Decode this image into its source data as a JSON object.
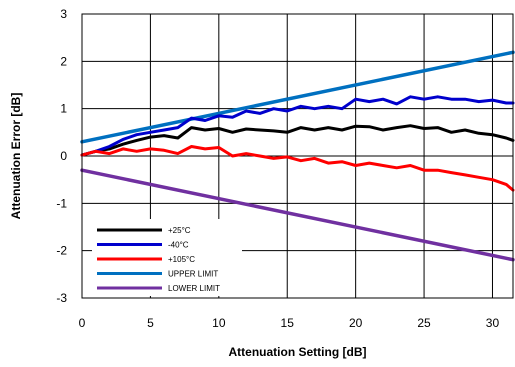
{
  "chart_data": {
    "type": "line",
    "title": "",
    "xlabel": "Attenuation Setting [dB]",
    "ylabel": "Attenuation Error [dB]",
    "xlim": [
      0,
      31.5
    ],
    "ylim": [
      -3,
      3
    ],
    "xticks": [
      0,
      5,
      10,
      15,
      20,
      25,
      30
    ],
    "xtick_labels": [
      "0",
      "5",
      "10",
      "15",
      "20",
      "25",
      "30"
    ],
    "yticks": [
      -3,
      -2,
      -1,
      0,
      1,
      2,
      3
    ],
    "ytick_labels": [
      "-3",
      "-2",
      "-1",
      "0",
      "1",
      "2",
      "3"
    ],
    "grid": true,
    "legend_position": "bottom-left",
    "series": [
      {
        "name": "+25°C",
        "color": "#000000",
        "x": [
          0,
          1,
          2,
          3,
          4,
          5,
          6,
          7,
          8,
          9,
          10,
          11,
          12,
          13,
          14,
          15,
          16,
          17,
          18,
          19,
          20,
          21,
          22,
          23,
          24,
          25,
          26,
          27,
          28,
          29,
          30,
          31,
          31.5
        ],
        "y": [
          0.02,
          0.1,
          0.15,
          0.25,
          0.33,
          0.4,
          0.43,
          0.38,
          0.6,
          0.55,
          0.58,
          0.5,
          0.57,
          0.55,
          0.53,
          0.5,
          0.6,
          0.55,
          0.6,
          0.55,
          0.63,
          0.62,
          0.55,
          0.6,
          0.64,
          0.58,
          0.6,
          0.5,
          0.55,
          0.48,
          0.45,
          0.38,
          0.33
        ]
      },
      {
        "name": "-40°C",
        "color": "#0000cc",
        "x": [
          0,
          1,
          2,
          3,
          4,
          5,
          6,
          7,
          8,
          9,
          10,
          11,
          12,
          13,
          14,
          15,
          16,
          17,
          18,
          19,
          20,
          21,
          22,
          23,
          24,
          25,
          26,
          27,
          28,
          29,
          30,
          31,
          31.5
        ],
        "y": [
          0.02,
          0.1,
          0.2,
          0.35,
          0.45,
          0.5,
          0.55,
          0.6,
          0.8,
          0.75,
          0.85,
          0.82,
          0.95,
          0.9,
          1.0,
          0.95,
          1.05,
          1.0,
          1.05,
          1.0,
          1.2,
          1.15,
          1.2,
          1.1,
          1.25,
          1.2,
          1.25,
          1.2,
          1.2,
          1.15,
          1.18,
          1.12,
          1.12
        ]
      },
      {
        "name": "+105°C",
        "color": "#ff0000",
        "x": [
          0,
          1,
          2,
          3,
          4,
          5,
          6,
          7,
          8,
          9,
          10,
          11,
          12,
          13,
          14,
          15,
          16,
          17,
          18,
          19,
          20,
          21,
          22,
          23,
          24,
          25,
          26,
          27,
          28,
          29,
          30,
          31,
          31.5
        ],
        "y": [
          0.02,
          0.1,
          0.05,
          0.15,
          0.1,
          0.15,
          0.12,
          0.05,
          0.2,
          0.15,
          0.18,
          0.0,
          0.05,
          0.0,
          -0.05,
          -0.02,
          -0.1,
          -0.05,
          -0.15,
          -0.12,
          -0.2,
          -0.15,
          -0.2,
          -0.25,
          -0.2,
          -0.3,
          -0.3,
          -0.35,
          -0.4,
          -0.45,
          -0.5,
          -0.6,
          -0.72
        ]
      },
      {
        "name": "UPPER LIMIT",
        "color": "#0070c0",
        "x": [
          0,
          31.5
        ],
        "y": [
          0.3,
          2.19
        ]
      },
      {
        "name": "LOWER LIMIT",
        "color": "#7030a0",
        "x": [
          0,
          31.5
        ],
        "y": [
          -0.3,
          -2.19
        ]
      }
    ]
  }
}
